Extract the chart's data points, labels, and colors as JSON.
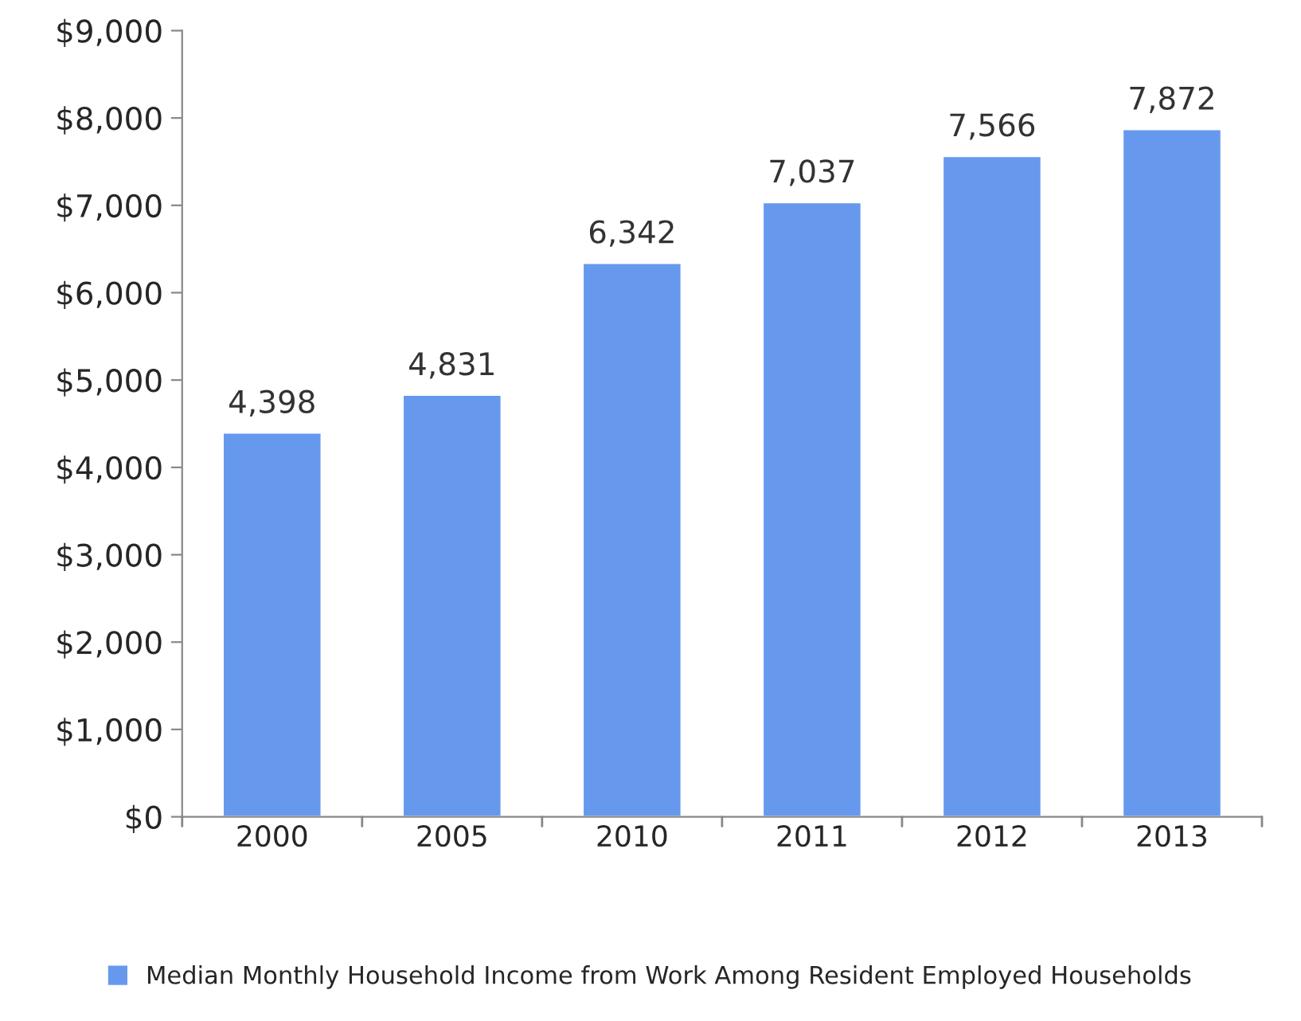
{
  "chart_data": {
    "type": "bar",
    "categories": [
      "2000",
      "2005",
      "2010",
      "2011",
      "2012",
      "2013"
    ],
    "series": [
      {
        "name": "Median Monthly Household Income from Work Among Resident Employed Households",
        "color": "#6699ee",
        "values": [
          4398,
          4831,
          6342,
          7037,
          7566,
          7872
        ],
        "value_labels": [
          "4,398",
          "4,831",
          "6,342",
          "7,037",
          "7,566",
          "7,872"
        ]
      }
    ],
    "ylim": [
      0,
      9000
    ],
    "yticks": [
      {
        "value": 0,
        "label": "$0"
      },
      {
        "value": 1000,
        "label": "$1,000"
      },
      {
        "value": 2000,
        "label": "$2,000"
      },
      {
        "value": 3000,
        "label": "$3,000"
      },
      {
        "value": 4000,
        "label": "$4,000"
      },
      {
        "value": 5000,
        "label": "$5,000"
      },
      {
        "value": 6000,
        "label": "$6,000"
      },
      {
        "value": 7000,
        "label": "$7,000"
      },
      {
        "value": 8000,
        "label": "$8,000"
      },
      {
        "value": 9000,
        "label": "$9,000"
      }
    ],
    "grid": false,
    "legend": "bottom"
  }
}
